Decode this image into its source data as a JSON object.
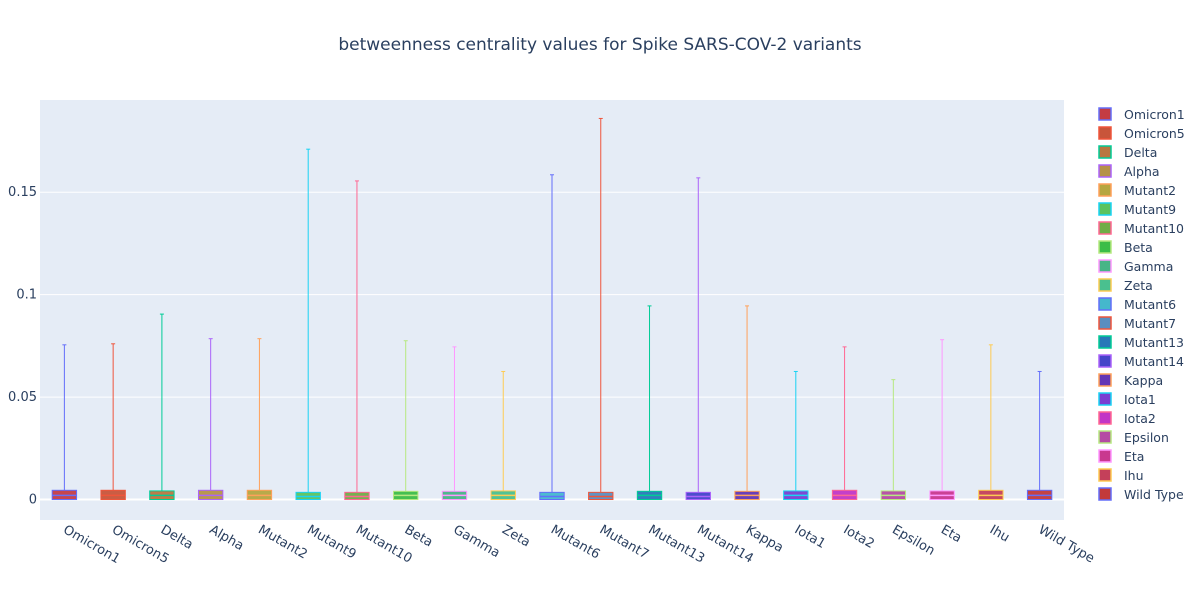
{
  "chart_data": {
    "type": "box",
    "title": "betweenness centrality values for Spike SARS-COV-2 variants",
    "xlabel": "",
    "ylabel": "",
    "ylim": [
      -0.01,
      0.195
    ],
    "yticks": [
      0,
      0.05,
      0.1,
      0.15
    ],
    "ytick_labels": [
      "0",
      "0.05",
      "0.1",
      "0.15"
    ],
    "grid": true,
    "legend_position": "right",
    "plot_background": "#e5ecf6",
    "series": [
      {
        "name": "Omicron1",
        "color": "#636efa",
        "fill": "#c43c44",
        "min": 0,
        "q1": 0.0005,
        "median": 0.002,
        "q3": 0.0045,
        "max": 0.0755
      },
      {
        "name": "Omicron5",
        "color": "#ef553b",
        "fill": "#c8553a",
        "min": 0,
        "q1": 0.0005,
        "median": 0.002,
        "q3": 0.0045,
        "max": 0.076
      },
      {
        "name": "Delta",
        "color": "#00cc96",
        "fill": "#b9773f",
        "min": 0,
        "q1": 0.0005,
        "median": 0.002,
        "q3": 0.0042,
        "max": 0.0905
      },
      {
        "name": "Alpha",
        "color": "#ab63fa",
        "fill": "#b59247",
        "min": 0,
        "q1": 0.0005,
        "median": 0.002,
        "q3": 0.0045,
        "max": 0.0785
      },
      {
        "name": "Mutant2",
        "color": "#ffa15a",
        "fill": "#b5a640",
        "min": 0,
        "q1": 0.0005,
        "median": 0.002,
        "q3": 0.0045,
        "max": 0.0785
      },
      {
        "name": "Mutant9",
        "color": "#19d3f3",
        "fill": "#5cc35e",
        "min": 0,
        "q1": 0.0003,
        "median": 0.0015,
        "q3": 0.0035,
        "max": 0.171
      },
      {
        "name": "Mutant10",
        "color": "#ff6692",
        "fill": "#6fad47",
        "min": 0,
        "q1": 0.0003,
        "median": 0.0015,
        "q3": 0.0035,
        "max": 0.1555
      },
      {
        "name": "Beta",
        "color": "#b6e880",
        "fill": "#3cbd48",
        "min": 0,
        "q1": 0.0005,
        "median": 0.002,
        "q3": 0.004,
        "max": 0.0775
      },
      {
        "name": "Gamma",
        "color": "#ff97ff",
        "fill": "#47b586",
        "min": 0,
        "q1": 0.0005,
        "median": 0.002,
        "q3": 0.004,
        "max": 0.0745
      },
      {
        "name": "Zeta",
        "color": "#fecb52",
        "fill": "#4ac08f",
        "min": 0,
        "q1": 0.0005,
        "median": 0.002,
        "q3": 0.0042,
        "max": 0.0625
      },
      {
        "name": "Mutant6",
        "color": "#636efa",
        "fill": "#45b8cc",
        "min": 0,
        "q1": 0.0003,
        "median": 0.0015,
        "q3": 0.0035,
        "max": 0.1585
      },
      {
        "name": "Mutant7",
        "color": "#ef553b",
        "fill": "#5a8ec0",
        "min": 0,
        "q1": 0.0003,
        "median": 0.0015,
        "q3": 0.0035,
        "max": 0.186
      },
      {
        "name": "Mutant13",
        "color": "#00cc96",
        "fill": "#2878b8",
        "min": 0,
        "q1": 0.0005,
        "median": 0.002,
        "q3": 0.004,
        "max": 0.0945
      },
      {
        "name": "Mutant14",
        "color": "#ab63fa",
        "fill": "#4545c9",
        "min": 0,
        "q1": 0.0003,
        "median": 0.0015,
        "q3": 0.0035,
        "max": 0.157
      },
      {
        "name": "Kappa",
        "color": "#ffa15a",
        "fill": "#6236b5",
        "min": 0,
        "q1": 0.0005,
        "median": 0.002,
        "q3": 0.004,
        "max": 0.0945
      },
      {
        "name": "Iota1",
        "color": "#19d3f3",
        "fill": "#7a3ed1",
        "min": 0,
        "q1": 0.0005,
        "median": 0.002,
        "q3": 0.0042,
        "max": 0.0625
      },
      {
        "name": "Iota2",
        "color": "#ff6692",
        "fill": "#c236c6",
        "min": 0,
        "q1": 0.0005,
        "median": 0.002,
        "q3": 0.0045,
        "max": 0.0745
      },
      {
        "name": "Epsilon",
        "color": "#b6e880",
        "fill": "#b54aa4",
        "min": 0,
        "q1": 0.0005,
        "median": 0.002,
        "q3": 0.0042,
        "max": 0.0585
      },
      {
        "name": "Eta",
        "color": "#ff97ff",
        "fill": "#c9388f",
        "min": 0,
        "q1": 0.0005,
        "median": 0.002,
        "q3": 0.0042,
        "max": 0.078
      },
      {
        "name": "Ihu",
        "color": "#fecb52",
        "fill": "#c4405a",
        "min": 0,
        "q1": 0.0005,
        "median": 0.002,
        "q3": 0.0045,
        "max": 0.0755
      },
      {
        "name": "Wild Type",
        "color": "#636efa",
        "fill": "#c23a3a",
        "min": 0,
        "q1": 0.0005,
        "median": 0.002,
        "q3": 0.0045,
        "max": 0.0625
      }
    ]
  }
}
